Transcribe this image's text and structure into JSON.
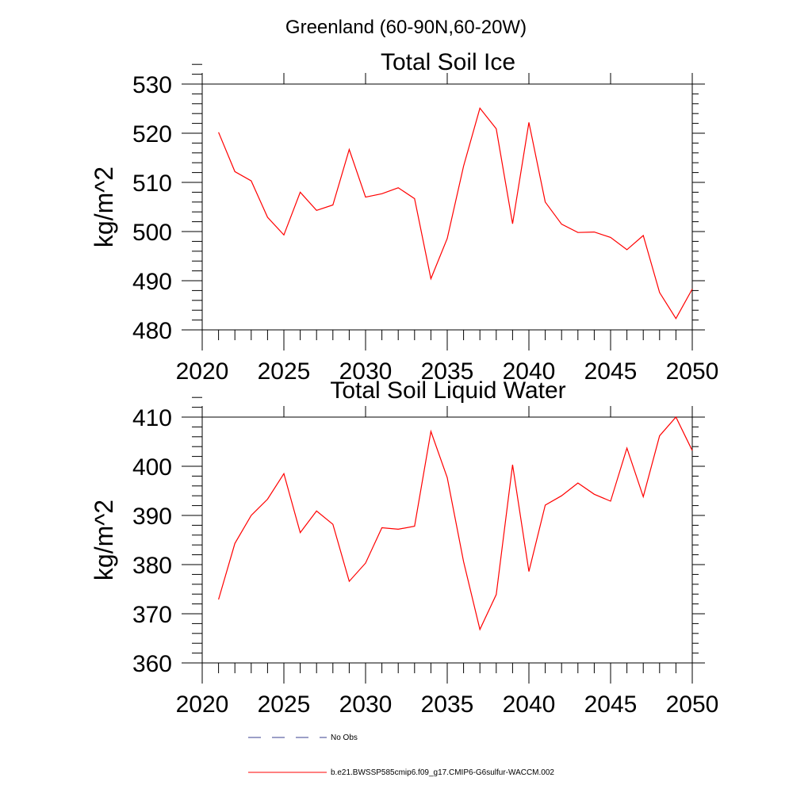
{
  "figure_title": "Greenland (60-90N,60-20W)",
  "chart_data": [
    {
      "type": "line",
      "title": "Total Soil Ice",
      "xlabel": "",
      "ylabel": "kg/m^2",
      "xlim": [
        2020,
        2050
      ],
      "ylim": [
        480,
        530
      ],
      "xticks": [
        2020,
        2025,
        2030,
        2035,
        2040,
        2045,
        2050
      ],
      "yticks": [
        480,
        490,
        500,
        510,
        520,
        530
      ],
      "series": [
        {
          "name": "b.e21.BWSSP585cmip6.f09_g17.CMIP6-G6sulfur-WACCM.002",
          "color": "#ff0000",
          "x": [
            2021,
            2022,
            2023,
            2024,
            2025,
            2026,
            2027,
            2028,
            2029,
            2030,
            2031,
            2032,
            2033,
            2034,
            2035,
            2036,
            2037,
            2038,
            2039,
            2040,
            2041,
            2042,
            2043,
            2044,
            2045,
            2046,
            2047,
            2048,
            2049,
            2050
          ],
          "values": [
            520.2,
            512.2,
            510.3,
            502.9,
            499.3,
            508.0,
            504.3,
            505.4,
            516.7,
            507.0,
            507.7,
            508.9,
            506.7,
            490.4,
            498.6,
            513.3,
            525.1,
            520.9,
            501.6,
            522.2,
            506.0,
            501.5,
            499.8,
            499.9,
            498.8,
            496.3,
            499.2,
            487.6,
            482.3,
            488.3
          ]
        }
      ]
    },
    {
      "type": "line",
      "title": "Total Soil Liquid Water",
      "xlabel": "",
      "ylabel": "kg/m^2",
      "xlim": [
        2020,
        2050
      ],
      "ylim": [
        360,
        410
      ],
      "xticks": [
        2020,
        2025,
        2030,
        2035,
        2040,
        2045,
        2050
      ],
      "yticks": [
        360,
        370,
        380,
        390,
        400,
        410
      ],
      "series": [
        {
          "name": "b.e21.BWSSP585cmip6.f09_g17.CMIP6-G6sulfur-WACCM.002",
          "color": "#ff0000",
          "x": [
            2021,
            2022,
            2023,
            2024,
            2025,
            2026,
            2027,
            2028,
            2029,
            2030,
            2031,
            2032,
            2033,
            2034,
            2035,
            2036,
            2037,
            2038,
            2039,
            2040,
            2041,
            2042,
            2043,
            2044,
            2045,
            2046,
            2047,
            2048,
            2049,
            2050
          ],
          "values": [
            372.9,
            384.3,
            390.0,
            393.3,
            398.5,
            386.5,
            390.9,
            388.2,
            376.6,
            380.3,
            387.5,
            387.2,
            387.8,
            407.1,
            397.7,
            380.6,
            366.8,
            373.9,
            400.3,
            378.6,
            392.1,
            394.0,
            396.6,
            394.3,
            392.9,
            403.7,
            393.8,
            406.2,
            410.0,
            403.2
          ]
        }
      ]
    }
  ],
  "legend": {
    "items": [
      {
        "label": "No Obs",
        "color": "#3a3f8f",
        "style": "dashed"
      },
      {
        "label": "b.e21.BWSSP585cmip6.f09_g17.CMIP6-G6sulfur-WACCM.002",
        "color": "#ff0000",
        "style": "solid"
      }
    ]
  }
}
